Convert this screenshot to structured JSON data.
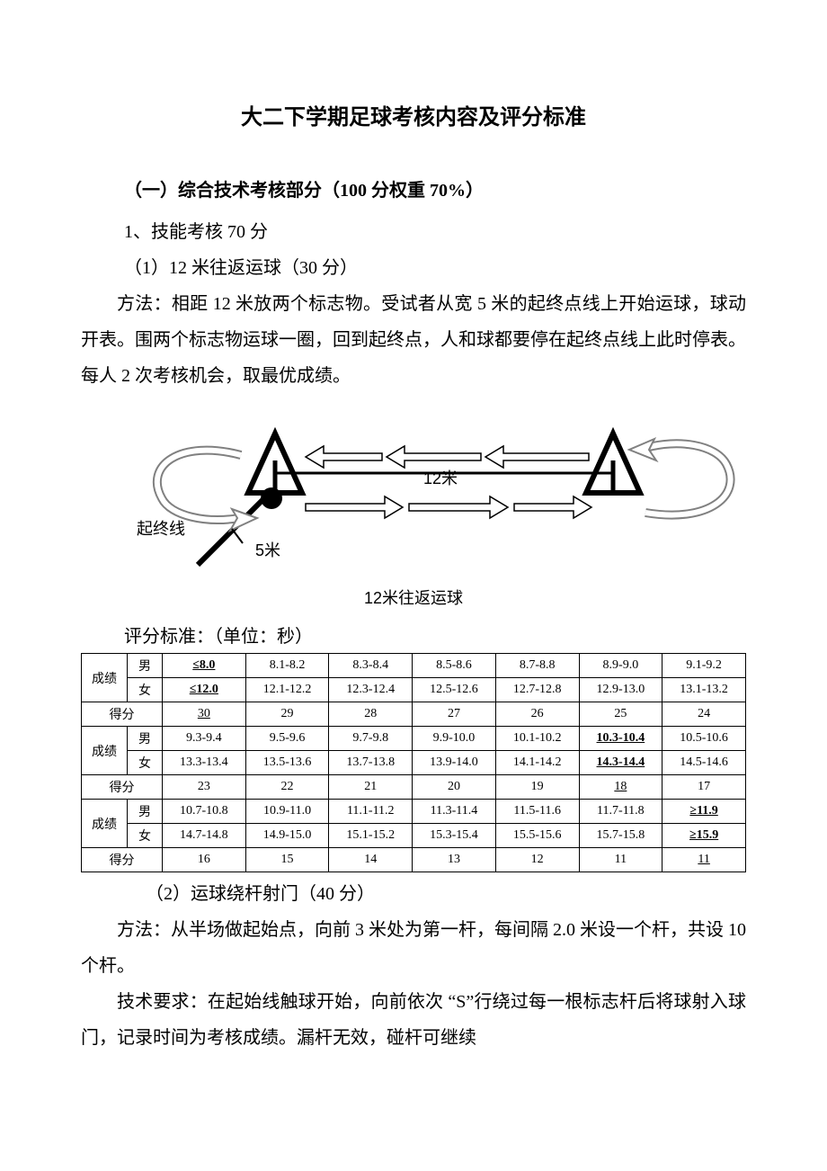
{
  "title": "大二下学期足球考核内容及评分标准",
  "section1_heading": "（一）综合技术考核部分（100 分权重 70%）",
  "item1": "1、技能考核 70 分",
  "sub1_heading": "（1）12 米往返运球（30 分）",
  "sub1_method": "方法：相距 12 米放两个标志物。受试者从宽 5 米的起终点线上开始运球，球动开表。围两个标志物运球一圈，回到起终点，人和球都要停在起终点线上此时停表。每人 2 次考核机会，取最优成绩。",
  "diagram": {
    "label_startline": "起终线",
    "label_5m": "5米",
    "label_12m": "12米",
    "caption": "12米往返运球"
  },
  "table1_caption": "评分标准：（单位：秒）",
  "table1": {
    "row_label_score": "成绩",
    "row_label_points": "得分",
    "gender_m": "男",
    "gender_f": "女",
    "rows": [
      {
        "m": [
          "≤8.0",
          "8.1-8.2",
          "8.3-8.4",
          "8.5-8.6",
          "8.7-8.8",
          "8.9-9.0",
          "9.1-9.2"
        ],
        "f": [
          "≤12.0",
          "12.1-12.2",
          "12.3-12.4",
          "12.5-12.6",
          "12.7-12.8",
          "12.9-13.0",
          "13.1-13.2"
        ],
        "pts": [
          "30",
          "29",
          "28",
          "27",
          "26",
          "25",
          "24"
        ],
        "u_m": [
          0
        ],
        "u_f": [
          0
        ],
        "u_pts": [
          0
        ]
      },
      {
        "m": [
          "9.3-9.4",
          "9.5-9.6",
          "9.7-9.8",
          "9.9-10.0",
          "10.1-10.2",
          "10.3-10.4",
          "10.5-10.6"
        ],
        "f": [
          "13.3-13.4",
          "13.5-13.6",
          "13.7-13.8",
          "13.9-14.0",
          "14.1-14.2",
          "14.3-14.4",
          "14.5-14.6"
        ],
        "pts": [
          "23",
          "22",
          "21",
          "20",
          "19",
          "18",
          "17"
        ],
        "u_m": [
          5
        ],
        "u_f": [
          5
        ],
        "u_pts": [
          5
        ]
      },
      {
        "m": [
          "10.7-10.8",
          "10.9-11.0",
          "11.1-11.2",
          "11.3-11.4",
          "11.5-11.6",
          "11.7-11.8",
          "≥11.9"
        ],
        "f": [
          "14.7-14.8",
          "14.9-15.0",
          "15.1-15.2",
          "15.3-15.4",
          "15.5-15.6",
          "15.7-15.8",
          "≥15.9"
        ],
        "pts": [
          "16",
          "15",
          "14",
          "13",
          "12",
          "11",
          "11"
        ],
        "u_m": [
          6
        ],
        "u_f": [
          6
        ],
        "u_pts": [
          6
        ]
      }
    ]
  },
  "sub2_heading": "（2）运球绕杆射门（40 分）",
  "sub2_method": "方法：从半场做起始点，向前 3 米处为第一杆，每间隔 2.0 米设一个杆，共设 10 个杆。",
  "sub2_tech": "技术要求：在起始线触球开始，向前依次 “S”行绕过每一根标志杆后将球射入球门，记录时间为考核成绩。漏杆无效，碰杆可继续"
}
